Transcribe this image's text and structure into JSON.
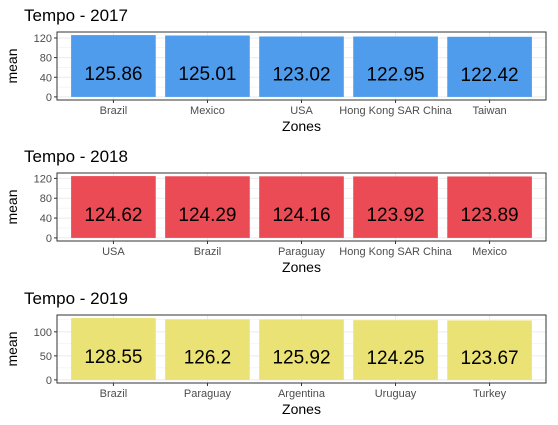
{
  "colors": {
    "c2017": "#4f9cec",
    "c2018": "#ea4b55",
    "c2019": "#ebe275",
    "grid": "#ebebeb",
    "frame": "#333333"
  },
  "chart_data": [
    {
      "type": "bar",
      "title": "Tempo - 2017",
      "xlabel": "Zones",
      "ylabel": "mean",
      "categories": [
        "Brazil",
        "Mexico",
        "USA",
        "Hong Kong SAR China",
        "Taiwan"
      ],
      "values": [
        125.86,
        125.01,
        123.02,
        122.95,
        122.42
      ],
      "data_labels": [
        "125.86",
        "125.01",
        "123.02",
        "122.95",
        "122.42"
      ],
      "ylim": [
        0,
        125.86
      ],
      "yticks": [
        0,
        40,
        80,
        120
      ],
      "grid": true,
      "color": "#4f9cec"
    },
    {
      "type": "bar",
      "title": "Tempo - 2018",
      "xlabel": "Zones",
      "ylabel": "mean",
      "categories": [
        "USA",
        "Brazil",
        "Paraguay",
        "Hong Kong SAR China",
        "Mexico"
      ],
      "values": [
        124.62,
        124.29,
        124.16,
        123.92,
        123.89
      ],
      "data_labels": [
        "124.62",
        "124.29",
        "124.16",
        "123.92",
        "123.89"
      ],
      "ylim": [
        0,
        124.62
      ],
      "yticks": [
        0,
        40,
        80,
        120
      ],
      "grid": true,
      "color": "#ea4b55"
    },
    {
      "type": "bar",
      "title": "Tempo - 2019",
      "xlabel": "Zones",
      "ylabel": "mean",
      "categories": [
        "Brazil",
        "Paraguay",
        "Argentina",
        "Uruguay",
        "Turkey"
      ],
      "values": [
        128.55,
        126.2,
        125.92,
        124.25,
        123.67
      ],
      "data_labels": [
        "128.55",
        "126.2",
        "125.92",
        "124.25",
        "123.67"
      ],
      "ylim": [
        0,
        128.55
      ],
      "yticks": [
        0,
        50,
        100
      ],
      "grid": true,
      "color": "#ebe275"
    }
  ]
}
